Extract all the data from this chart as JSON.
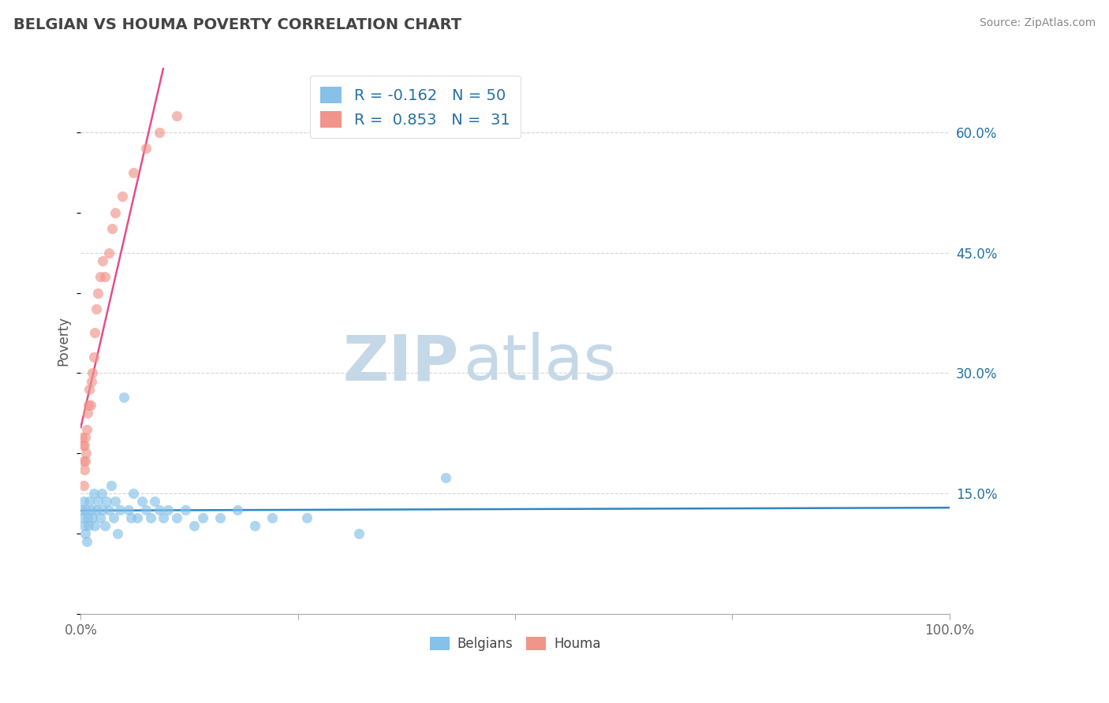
{
  "title": "BELGIAN VS HOUMA POVERTY CORRELATION CHART",
  "source": "Source: ZipAtlas.com",
  "ylabel": "Poverty",
  "yaxis_ticks": [
    0.0,
    0.15,
    0.3,
    0.45,
    0.6
  ],
  "yaxis_labels": [
    "",
    "15.0%",
    "30.0%",
    "45.0%",
    "60.0%"
  ],
  "xlim": [
    0.0,
    1.0
  ],
  "ylim": [
    0.0,
    0.68
  ],
  "belgians_R": -0.162,
  "belgians_N": 50,
  "houma_R": 0.853,
  "houma_N": 31,
  "blue_color": "#85C1E9",
  "pink_color": "#F1948A",
  "blue_line_color": "#2E86C1",
  "pink_line_color": "#E74C8B",
  "legend_R_color": "#2471A3",
  "legend_text_color": "#333333",
  "title_color": "#444444",
  "watermark_zip_color": "#C5D8E8",
  "watermark_atlas_color": "#C5D8E8",
  "source_color": "#888888",
  "background_color": "#ffffff",
  "grid_color": "#cccccc",
  "axis_color": "#aaaaaa",
  "belgians_x": [
    0.001,
    0.002,
    0.003,
    0.004,
    0.005,
    0.006,
    0.007,
    0.008,
    0.009,
    0.01,
    0.012,
    0.013,
    0.015,
    0.016,
    0.018,
    0.02,
    0.022,
    0.024,
    0.025,
    0.028,
    0.03,
    0.032,
    0.035,
    0.038,
    0.04,
    0.042,
    0.045,
    0.05,
    0.055,
    0.058,
    0.06,
    0.065,
    0.07,
    0.075,
    0.08,
    0.085,
    0.09,
    0.095,
    0.1,
    0.11,
    0.12,
    0.13,
    0.14,
    0.16,
    0.18,
    0.2,
    0.22,
    0.26,
    0.32,
    0.42
  ],
  "belgians_y": [
    0.13,
    0.12,
    0.14,
    0.11,
    0.1,
    0.13,
    0.09,
    0.12,
    0.11,
    0.14,
    0.13,
    0.12,
    0.15,
    0.11,
    0.13,
    0.14,
    0.12,
    0.15,
    0.13,
    0.11,
    0.14,
    0.13,
    0.16,
    0.12,
    0.14,
    0.1,
    0.13,
    0.27,
    0.13,
    0.12,
    0.15,
    0.12,
    0.14,
    0.13,
    0.12,
    0.14,
    0.13,
    0.12,
    0.13,
    0.12,
    0.13,
    0.11,
    0.12,
    0.12,
    0.13,
    0.11,
    0.12,
    0.12,
    0.1,
    0.17
  ],
  "houma_x": [
    0.001,
    0.002,
    0.003,
    0.003,
    0.004,
    0.004,
    0.005,
    0.005,
    0.006,
    0.007,
    0.008,
    0.009,
    0.01,
    0.011,
    0.012,
    0.013,
    0.015,
    0.016,
    0.018,
    0.02,
    0.022,
    0.025,
    0.028,
    0.032,
    0.036,
    0.04,
    0.048,
    0.06,
    0.075,
    0.09,
    0.11
  ],
  "houma_y": [
    0.22,
    0.21,
    0.19,
    0.16,
    0.21,
    0.18,
    0.22,
    0.19,
    0.2,
    0.23,
    0.25,
    0.26,
    0.28,
    0.26,
    0.29,
    0.3,
    0.32,
    0.35,
    0.38,
    0.4,
    0.42,
    0.44,
    0.42,
    0.45,
    0.48,
    0.5,
    0.52,
    0.55,
    0.58,
    0.6,
    0.62
  ],
  "marker_size": 90
}
